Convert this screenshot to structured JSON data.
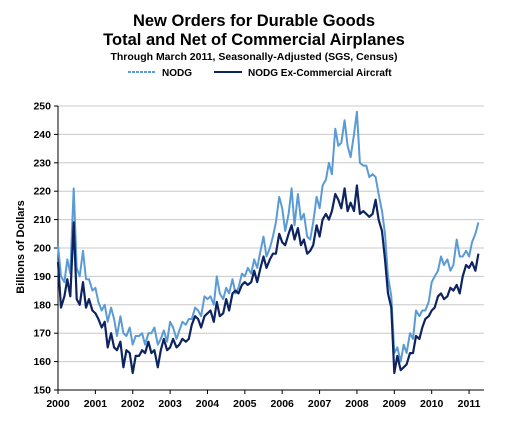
{
  "chart_data": {
    "type": "line",
    "title": "New Orders for Durable Goods",
    "title_line2": "Total and Net of Commercial Airplanes",
    "subtitle": "Through March 2011, Seasonally-Adjusted (SGS, Census)",
    "ylabel": "Billions of Dollars",
    "xlabel": "",
    "ylim": [
      150,
      250
    ],
    "xlim": [
      2000,
      2011.4
    ],
    "y_ticks": [
      "150",
      "160",
      "170",
      "180",
      "190",
      "200",
      "210",
      "220",
      "230",
      "240",
      "250"
    ],
    "x_ticks": [
      "2000",
      "2001",
      "2002",
      "2003",
      "2004",
      "2005",
      "2006",
      "2007",
      "2008",
      "2009",
      "2010",
      "2011"
    ],
    "grid": "horizontal",
    "legend_position": "top-center",
    "series": [
      {
        "name": "NODG",
        "color": "#5b9bd5",
        "points": [
          [
            2000.0,
            201
          ],
          [
            2000.08,
            190
          ],
          [
            2000.17,
            188
          ],
          [
            2000.25,
            196
          ],
          [
            2000.33,
            191
          ],
          [
            2000.42,
            221
          ],
          [
            2000.5,
            193
          ],
          [
            2000.58,
            190
          ],
          [
            2000.67,
            199
          ],
          [
            2000.75,
            189
          ],
          [
            2000.83,
            189
          ],
          [
            2000.92,
            185
          ],
          [
            2001.0,
            186
          ],
          [
            2001.08,
            181
          ],
          [
            2001.17,
            178
          ],
          [
            2001.25,
            180
          ],
          [
            2001.33,
            174
          ],
          [
            2001.42,
            179
          ],
          [
            2001.5,
            175
          ],
          [
            2001.58,
            169
          ],
          [
            2001.67,
            176
          ],
          [
            2001.75,
            170
          ],
          [
            2001.83,
            169
          ],
          [
            2001.92,
            172
          ],
          [
            2002.0,
            166
          ],
          [
            2002.08,
            169
          ],
          [
            2002.17,
            169
          ],
          [
            2002.25,
            170
          ],
          [
            2002.33,
            166
          ],
          [
            2002.42,
            170
          ],
          [
            2002.5,
            170
          ],
          [
            2002.58,
            172
          ],
          [
            2002.67,
            166
          ],
          [
            2002.75,
            168
          ],
          [
            2002.83,
            171
          ],
          [
            2002.92,
            167
          ],
          [
            2003.0,
            174
          ],
          [
            2003.08,
            172
          ],
          [
            2003.17,
            168
          ],
          [
            2003.25,
            171
          ],
          [
            2003.33,
            174
          ],
          [
            2003.42,
            173
          ],
          [
            2003.5,
            175
          ],
          [
            2003.58,
            175
          ],
          [
            2003.67,
            179
          ],
          [
            2003.75,
            178
          ],
          [
            2003.83,
            176
          ],
          [
            2003.92,
            183
          ],
          [
            2004.0,
            182
          ],
          [
            2004.08,
            183
          ],
          [
            2004.17,
            180
          ],
          [
            2004.25,
            190
          ],
          [
            2004.33,
            184
          ],
          [
            2004.42,
            182
          ],
          [
            2004.5,
            186
          ],
          [
            2004.58,
            184
          ],
          [
            2004.67,
            189
          ],
          [
            2004.75,
            184
          ],
          [
            2004.83,
            186
          ],
          [
            2004.92,
            191
          ],
          [
            2005.0,
            190
          ],
          [
            2005.08,
            193
          ],
          [
            2005.17,
            191
          ],
          [
            2005.25,
            196
          ],
          [
            2005.33,
            193
          ],
          [
            2005.42,
            199
          ],
          [
            2005.5,
            204
          ],
          [
            2005.58,
            197
          ],
          [
            2005.67,
            200
          ],
          [
            2005.75,
            204
          ],
          [
            2005.83,
            209
          ],
          [
            2005.92,
            218
          ],
          [
            2006.0,
            214
          ],
          [
            2006.08,
            206
          ],
          [
            2006.17,
            212
          ],
          [
            2006.25,
            221
          ],
          [
            2006.33,
            208
          ],
          [
            2006.42,
            219
          ],
          [
            2006.5,
            210
          ],
          [
            2006.58,
            212
          ],
          [
            2006.67,
            204
          ],
          [
            2006.75,
            203
          ],
          [
            2006.83,
            209
          ],
          [
            2006.92,
            218
          ],
          [
            2007.0,
            214
          ],
          [
            2007.08,
            222
          ],
          [
            2007.17,
            224
          ],
          [
            2007.25,
            230
          ],
          [
            2007.33,
            226
          ],
          [
            2007.42,
            242
          ],
          [
            2007.5,
            236
          ],
          [
            2007.58,
            237
          ],
          [
            2007.67,
            245
          ],
          [
            2007.75,
            236
          ],
          [
            2007.83,
            232
          ],
          [
            2007.92,
            240
          ],
          [
            2008.0,
            248
          ],
          [
            2008.08,
            230
          ],
          [
            2008.17,
            229
          ],
          [
            2008.25,
            229
          ],
          [
            2008.33,
            225
          ],
          [
            2008.42,
            226
          ],
          [
            2008.5,
            225
          ],
          [
            2008.58,
            219
          ],
          [
            2008.67,
            213
          ],
          [
            2008.75,
            205
          ],
          [
            2008.83,
            190
          ],
          [
            2008.92,
            183
          ],
          [
            2009.0,
            163
          ],
          [
            2009.08,
            165
          ],
          [
            2009.17,
            160
          ],
          [
            2009.25,
            166
          ],
          [
            2009.33,
            163
          ],
          [
            2009.42,
            170
          ],
          [
            2009.5,
            168
          ],
          [
            2009.58,
            178
          ],
          [
            2009.67,
            176
          ],
          [
            2009.75,
            178
          ],
          [
            2009.83,
            178
          ],
          [
            2009.92,
            181
          ],
          [
            2010.0,
            188
          ],
          [
            2010.08,
            190
          ],
          [
            2010.17,
            192
          ],
          [
            2010.25,
            197
          ],
          [
            2010.33,
            194
          ],
          [
            2010.42,
            196
          ],
          [
            2010.5,
            192
          ],
          [
            2010.58,
            194
          ],
          [
            2010.67,
            203
          ],
          [
            2010.75,
            197
          ],
          [
            2010.83,
            197
          ],
          [
            2010.92,
            199
          ],
          [
            2011.0,
            197
          ],
          [
            2011.08,
            202
          ],
          [
            2011.17,
            205
          ],
          [
            2011.25,
            209
          ]
        ]
      },
      {
        "name": "NODG Ex-Commercial Aircraft",
        "color": "#0d2461",
        "points": [
          [
            2000.0,
            195
          ],
          [
            2000.08,
            179
          ],
          [
            2000.17,
            183
          ],
          [
            2000.25,
            189
          ],
          [
            2000.33,
            183
          ],
          [
            2000.42,
            209
          ],
          [
            2000.5,
            182
          ],
          [
            2000.58,
            180
          ],
          [
            2000.67,
            188
          ],
          [
            2000.75,
            179
          ],
          [
            2000.83,
            182
          ],
          [
            2000.92,
            178
          ],
          [
            2001.0,
            177
          ],
          [
            2001.08,
            175
          ],
          [
            2001.17,
            172
          ],
          [
            2001.25,
            174
          ],
          [
            2001.33,
            165
          ],
          [
            2001.42,
            170
          ],
          [
            2001.5,
            165
          ],
          [
            2001.58,
            164
          ],
          [
            2001.67,
            167
          ],
          [
            2001.75,
            158
          ],
          [
            2001.83,
            164
          ],
          [
            2001.92,
            163
          ],
          [
            2002.0,
            156
          ],
          [
            2002.08,
            162
          ],
          [
            2002.17,
            162
          ],
          [
            2002.25,
            164
          ],
          [
            2002.33,
            163
          ],
          [
            2002.42,
            167
          ],
          [
            2002.5,
            163
          ],
          [
            2002.58,
            164
          ],
          [
            2002.67,
            158
          ],
          [
            2002.75,
            164
          ],
          [
            2002.83,
            168
          ],
          [
            2002.92,
            164
          ],
          [
            2003.0,
            165
          ],
          [
            2003.08,
            168
          ],
          [
            2003.17,
            165
          ],
          [
            2003.25,
            166
          ],
          [
            2003.33,
            168
          ],
          [
            2003.42,
            167
          ],
          [
            2003.5,
            168
          ],
          [
            2003.58,
            173
          ],
          [
            2003.67,
            176
          ],
          [
            2003.75,
            175
          ],
          [
            2003.83,
            172
          ],
          [
            2003.92,
            176
          ],
          [
            2004.0,
            177
          ],
          [
            2004.08,
            178
          ],
          [
            2004.17,
            174
          ],
          [
            2004.25,
            181
          ],
          [
            2004.33,
            176
          ],
          [
            2004.42,
            177
          ],
          [
            2004.5,
            182
          ],
          [
            2004.58,
            178
          ],
          [
            2004.67,
            184
          ],
          [
            2004.75,
            185
          ],
          [
            2004.83,
            184
          ],
          [
            2004.92,
            187
          ],
          [
            2005.0,
            188
          ],
          [
            2005.08,
            187
          ],
          [
            2005.17,
            188
          ],
          [
            2005.25,
            192
          ],
          [
            2005.33,
            188
          ],
          [
            2005.42,
            193
          ],
          [
            2005.5,
            197
          ],
          [
            2005.58,
            193
          ],
          [
            2005.67,
            196
          ],
          [
            2005.75,
            198
          ],
          [
            2005.83,
            198
          ],
          [
            2005.92,
            205
          ],
          [
            2006.0,
            202
          ],
          [
            2006.08,
            201
          ],
          [
            2006.17,
            205
          ],
          [
            2006.25,
            208
          ],
          [
            2006.33,
            203
          ],
          [
            2006.42,
            207
          ],
          [
            2006.5,
            201
          ],
          [
            2006.58,
            203
          ],
          [
            2006.67,
            198
          ],
          [
            2006.75,
            199
          ],
          [
            2006.83,
            201
          ],
          [
            2006.92,
            208
          ],
          [
            2007.0,
            204
          ],
          [
            2007.08,
            210
          ],
          [
            2007.17,
            212
          ],
          [
            2007.25,
            210
          ],
          [
            2007.33,
            213
          ],
          [
            2007.42,
            219
          ],
          [
            2007.5,
            217
          ],
          [
            2007.58,
            214
          ],
          [
            2007.67,
            221
          ],
          [
            2007.75,
            213
          ],
          [
            2007.83,
            216
          ],
          [
            2007.92,
            213
          ],
          [
            2008.0,
            222
          ],
          [
            2008.08,
            212
          ],
          [
            2008.17,
            213
          ],
          [
            2008.25,
            212
          ],
          [
            2008.33,
            211
          ],
          [
            2008.42,
            212
          ],
          [
            2008.5,
            217
          ],
          [
            2008.58,
            210
          ],
          [
            2008.67,
            206
          ],
          [
            2008.75,
            196
          ],
          [
            2008.83,
            184
          ],
          [
            2008.92,
            179
          ],
          [
            2009.0,
            156
          ],
          [
            2009.08,
            162
          ],
          [
            2009.17,
            157
          ],
          [
            2009.25,
            158
          ],
          [
            2009.33,
            159
          ],
          [
            2009.42,
            163
          ],
          [
            2009.5,
            163
          ],
          [
            2009.58,
            169
          ],
          [
            2009.67,
            168
          ],
          [
            2009.75,
            172
          ],
          [
            2009.83,
            175
          ],
          [
            2009.92,
            176
          ],
          [
            2010.0,
            178
          ],
          [
            2010.08,
            179
          ],
          [
            2010.17,
            183
          ],
          [
            2010.25,
            184
          ],
          [
            2010.33,
            182
          ],
          [
            2010.42,
            183
          ],
          [
            2010.5,
            186
          ],
          [
            2010.58,
            185
          ],
          [
            2010.67,
            187
          ],
          [
            2010.75,
            184
          ],
          [
            2010.83,
            190
          ],
          [
            2010.92,
            194
          ],
          [
            2011.0,
            193
          ],
          [
            2011.08,
            195
          ],
          [
            2011.17,
            192
          ],
          [
            2011.25,
            198
          ]
        ]
      }
    ]
  }
}
